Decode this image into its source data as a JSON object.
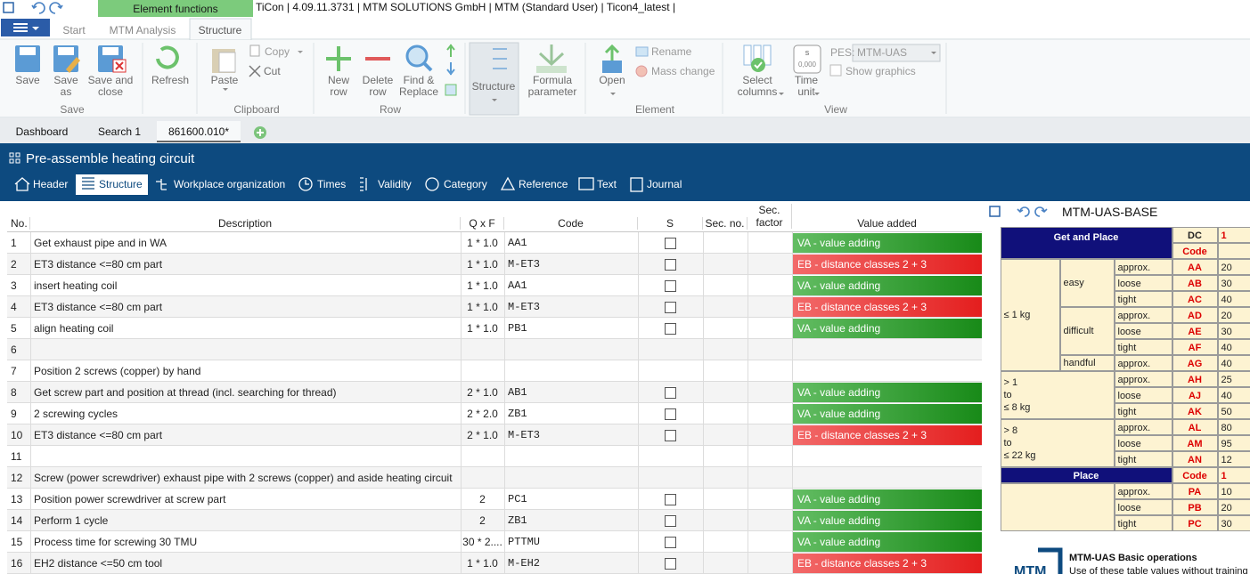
{
  "title_bar": {
    "context_tab": "Element functions",
    "text": "TiCon | 4.09.11.3731 | MTM SOLUTIONS GmbH  | MTM (Standard User) | Ticon4_latest |"
  },
  "ribbon": {
    "tabs": [
      "Start",
      "MTM Analysis",
      "Structure"
    ],
    "buttons": {
      "save": "Save",
      "save_as": "Save as",
      "save_close": "Save and close",
      "refresh": "Refresh",
      "paste": "Paste",
      "copy": "Copy",
      "cut": "Cut",
      "new_row": "New row",
      "delete_row": "Delete row",
      "find_replace": "Find & Replace",
      "structure": "Structure",
      "formula": "Formula parameter",
      "open": "Open",
      "rename": "Rename",
      "mass_change": "Mass change",
      "select_columns": "Select columns",
      "time_unit": "Time unit",
      "pes": "PES:",
      "pes_value": "MTM-UAS",
      "show_graphics": "Show graphics"
    },
    "time_unit_icon": [
      "s",
      "0,000"
    ],
    "groups": [
      "Save",
      "Clipboard",
      "Row",
      "Element",
      "View"
    ]
  },
  "doc_tabs": [
    "Dashboard",
    "Search 1",
    "861600.010*"
  ],
  "header": {
    "title": "Pre-assemble heating circuit",
    "tabs": [
      "Header",
      "Structure",
      "Workplace organization",
      "Times",
      "Validity",
      "Category",
      "Reference",
      "Text",
      "Journal"
    ]
  },
  "table": {
    "columns": [
      "No.",
      "Description",
      "Q x F",
      "Code",
      "S",
      "Sec. no.",
      "Sec. factor",
      "Value added"
    ],
    "rows": [
      {
        "no": 1,
        "description": "Get exhaust pipe and in WA",
        "qxf": "1 * 1.0",
        "code": "AA1",
        "value_added": "VA - value adding",
        "color": "green"
      },
      {
        "no": 2,
        "description": "ET3 distance <=80 cm part",
        "qxf": "1 * 1.0",
        "code": "M-ET3",
        "value_added": "EB - distance classes 2 + 3",
        "color": "red"
      },
      {
        "no": 3,
        "description": "insert heating coil",
        "qxf": "1 * 1.0",
        "code": "AA1",
        "value_added": "VA - value adding",
        "color": "green"
      },
      {
        "no": 4,
        "description": "ET3 distance <=80 cm part",
        "qxf": "1 * 1.0",
        "code": "M-ET3",
        "value_added": "EB - distance classes 2 + 3",
        "color": "red"
      },
      {
        "no": 5,
        "description": "align heating coil",
        "qxf": "1 * 1.0",
        "code": "PB1",
        "value_added": "VA - value adding",
        "color": "green"
      },
      {
        "no": 6
      },
      {
        "no": 7,
        "description": "Position 2 screws (copper) by hand"
      },
      {
        "no": 8,
        "description": "Get screw part and position at thread (incl. searching for thread)",
        "qxf": "2 * 1.0",
        "code": "AB1",
        "value_added": "VA - value adding",
        "color": "green"
      },
      {
        "no": 9,
        "description": "2 screwing cycles",
        "qxf": "2 * 2.0",
        "code": "ZB1",
        "value_added": "VA - value adding",
        "color": "green"
      },
      {
        "no": 10,
        "description": "ET3 distance <=80 cm part",
        "qxf": "2 * 1.0",
        "code": "M-ET3",
        "value_added": "EB - distance classes 2 + 3",
        "color": "red"
      },
      {
        "no": 11
      },
      {
        "no": 12,
        "description": "Screw (power screwdriver) exhaust pipe with 2 screws (copper) and aside heating circuit"
      },
      {
        "no": 13,
        "description": "Position power screwdriver at screw part",
        "qxf": "2",
        "code": "PC1",
        "value_added": "VA - value adding",
        "color": "green"
      },
      {
        "no": 14,
        "description": "Perform 1 cycle",
        "qxf": "2",
        "code": "ZB1",
        "value_added": "VA - value adding",
        "color": "green"
      },
      {
        "no": 15,
        "description": "Process time for screwing 30 TMU",
        "qxf": "30 * 2....",
        "code": "PTTMU",
        "value_added": "VA - value adding",
        "color": "green"
      },
      {
        "no": 16,
        "description": "EH2 distance <=50 cm tool",
        "qxf": "1 * 1.0",
        "code": "M-EH2",
        "value_added": "EB - distance classes 2 + 3",
        "color": "red"
      }
    ]
  },
  "card": {
    "title": "MTM-UAS-BASE",
    "header": {
      "group": "Get and Place",
      "dc": "DC",
      "code": "Code",
      "first": "1"
    },
    "weights": [
      {
        "label": "≤ 1 kg",
        "groups": [
          {
            "label": "easy",
            "rows": [
              {
                "fit": "approx.",
                "code": "AA",
                "value": 20
              },
              {
                "fit": "loose",
                "code": "AB",
                "value": 30
              },
              {
                "fit": "tight",
                "code": "AC",
                "value": 40
              }
            ]
          },
          {
            "label": "difficult",
            "rows": [
              {
                "fit": "approx.",
                "code": "AD",
                "value": 20
              },
              {
                "fit": "loose",
                "code": "AE",
                "value": 30
              },
              {
                "fit": "tight",
                "code": "AF",
                "value": 40
              }
            ]
          },
          {
            "label": "handful",
            "rows": [
              {
                "fit": "approx.",
                "code": "AG",
                "value": 40
              }
            ]
          }
        ]
      },
      {
        "label": "> 1\nto\n≤ 8 kg",
        "groups": [
          {
            "rows": [
              {
                "fit": "approx.",
                "code": "AH",
                "value": 25
              },
              {
                "fit": "loose",
                "code": "AJ",
                "value": 40
              },
              {
                "fit": "tight",
                "code": "AK",
                "value": 50
              }
            ]
          }
        ]
      },
      {
        "label": "> 8\nto\n≤ 22 kg",
        "groups": [
          {
            "rows": [
              {
                "fit": "approx.",
                "code": "AL",
                "value": 80
              },
              {
                "fit": "loose",
                "code": "AM",
                "value": 95
              },
              {
                "fit": "tight",
                "code": "AN",
                "value": 12
              }
            ]
          }
        ]
      }
    ],
    "place": {
      "label": "Place",
      "code": "Code",
      "first": "1",
      "rows": [
        {
          "fit": "approx.",
          "code": "PA",
          "value": 10
        },
        {
          "fit": "loose",
          "code": "PB",
          "value": 20
        },
        {
          "fit": "tight",
          "code": "PC",
          "value": 30
        }
      ]
    },
    "footer": {
      "title": "MTM-UAS Basic operations",
      "text": "Use of these table values without training i",
      "logo": "MTM"
    }
  }
}
